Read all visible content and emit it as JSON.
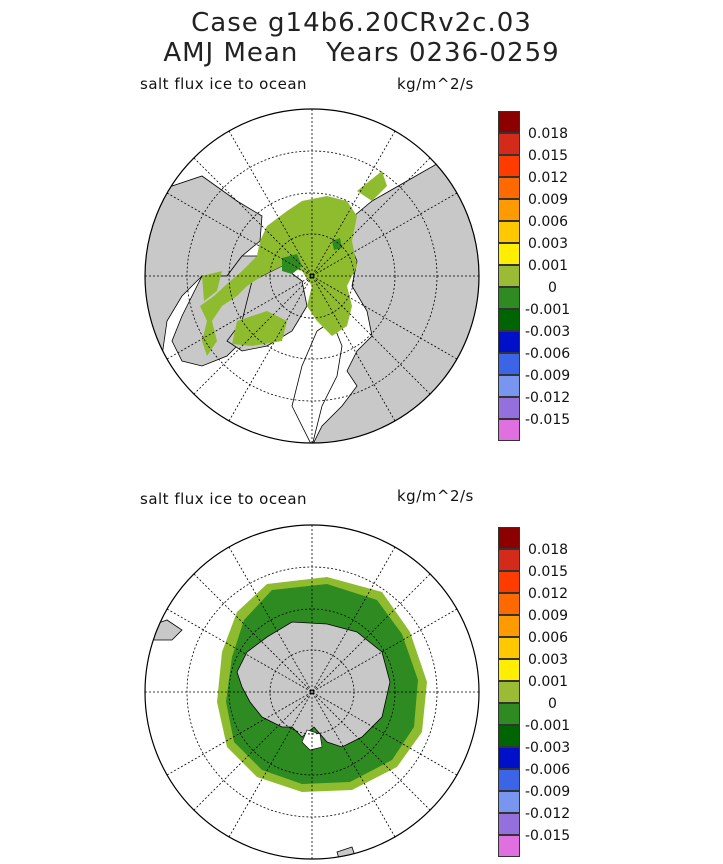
{
  "header": {
    "title_line1": "Case g14b6.20CRv2c.03",
    "title_line2": "AMJ Mean   Years 0236-0259"
  },
  "panels": [
    {
      "label": "salt flux ice to ocean",
      "units": "kg/m^2/s",
      "hemisphere": "north"
    },
    {
      "label": "salt flux ice to ocean",
      "units": "kg/m^2/s",
      "hemisphere": "south"
    }
  ],
  "colorbar": {
    "tick_labels": [
      "0.018",
      "0.015",
      "0.012",
      "0.009",
      "0.006",
      "0.003",
      "0.001",
      "0",
      "-0.001",
      "-0.003",
      "-0.006",
      "-0.009",
      "-0.012",
      "-0.015"
    ],
    "colors": [
      "#8b0000",
      "#d42a1a",
      "#ff3c00",
      "#ff6a00",
      "#ff9a00",
      "#ffc800",
      "#ffee00",
      "#9abb33",
      "#2e8b22",
      "#006400",
      "#0010c8",
      "#3c64e6",
      "#7896f0",
      "#9370db",
      "#e070e0"
    ]
  },
  "map_colors": {
    "land": "#c8c8c8",
    "ocean": "#ffffff",
    "ice_light_green": "#8fbc2f",
    "ice_dark_green": "#2e8b22"
  }
}
